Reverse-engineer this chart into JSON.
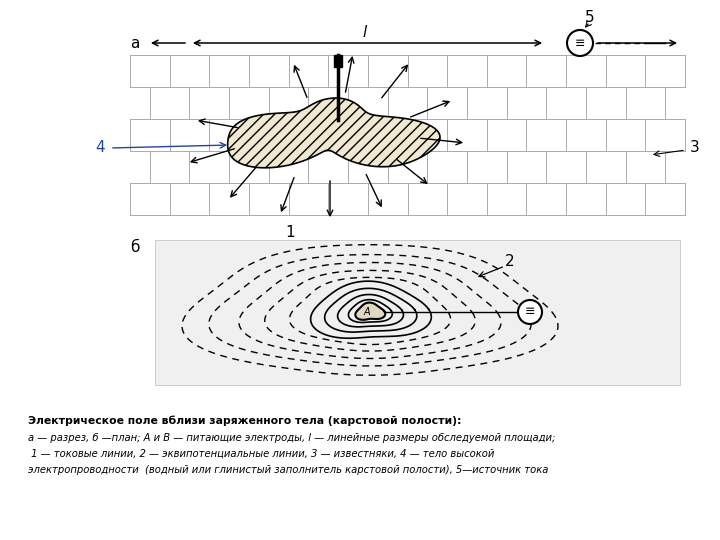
{
  "bg_color": "#ffffff",
  "fig_width": 7.2,
  "fig_height": 5.4,
  "label_a": "а",
  "label_b": "б",
  "label_1": "1",
  "label_2": "2",
  "label_3": "3",
  "label_4": "4",
  "label_5": "5",
  "caption_line1": "Электрическое поле вблизи заряженного тела (карстовой полости):",
  "caption_line2": "а — разрез, б —план; А и В — питающие электроды, l — линейные размеры обследуемой площади;",
  "caption_line3": " 1 — токовые линии, 2 — эквипотенциальные линии, 3 — известняки, 4 — тело высокой",
  "caption_line4": "электропроводности  (водный или глинистый заполнитель карстовой полости), 5—источник тока"
}
